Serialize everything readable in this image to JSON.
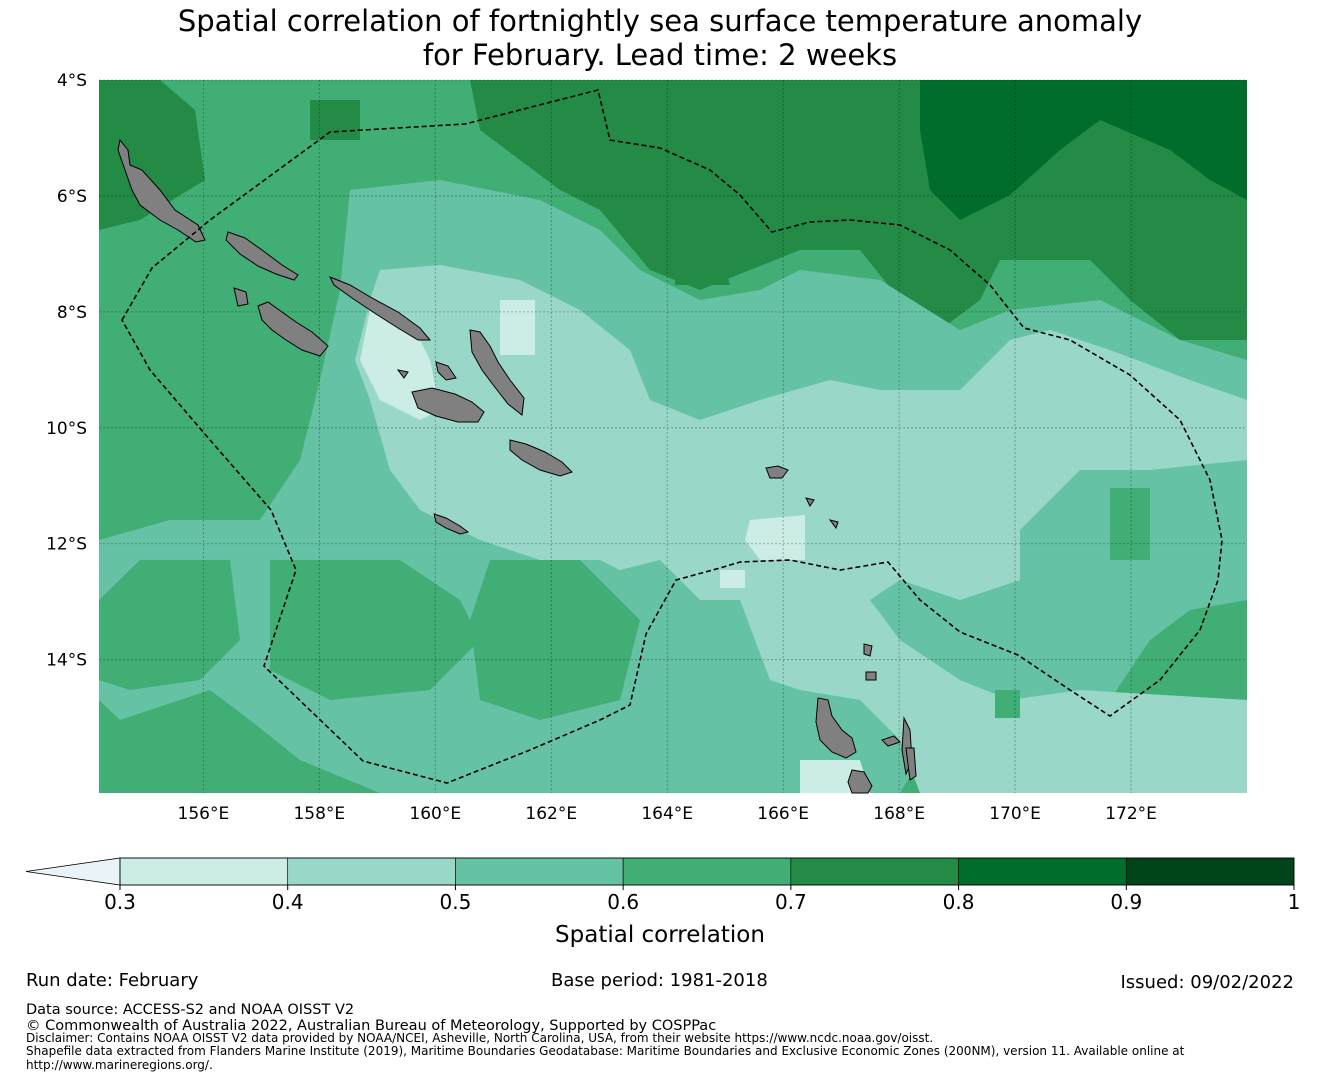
{
  "title": {
    "line1": "Spatial correlation of fortnightly sea surface temperature anomaly",
    "line2": "for February. Lead time: 2 weeks"
  },
  "map": {
    "lon_range": [
      154.2,
      174.0
    ],
    "lat_range": [
      -16.3,
      -4.0
    ],
    "lon_ticks": [
      "156°E",
      "158°E",
      "160°E",
      "162°E",
      "164°E",
      "166°E",
      "168°E",
      "170°E",
      "172°E"
    ],
    "lat_ticks": [
      "4°S",
      "6°S",
      "8°S",
      "10°S",
      "12°S",
      "14°S"
    ],
    "gridlines": true,
    "land_color": "#808080",
    "eez_boundary_style": "dashed"
  },
  "colorbar": {
    "label": "Spatial correlation",
    "ticks": [
      "0.3",
      "0.4",
      "0.5",
      "0.6",
      "0.7",
      "0.8",
      "0.9",
      "1"
    ],
    "extend": "min",
    "under_color": "#e8f4f8",
    "colors": [
      "#ccece6",
      "#99d8c9",
      "#66c2a4",
      "#41ae76",
      "#238b45",
      "#006d2c",
      "#00441b"
    ]
  },
  "footer": {
    "run_date": "Run date: February",
    "base_period": "Base period: 1981-2018",
    "issued": "Issued: 09/02/2022",
    "data_source": "Data source: ACCESS-S2 and NOAA OISST V2",
    "copyright": "© Commonwealth of Australia 2022, Australian Bureau of Meteorology, Supported by COSPPac",
    "disclaimer": "Disclaimer: Contains NOAA OISST V2 data provided by NOAA/NCEI, Asheville, North Carolina, USA, from their website https://www.ncdc.noaa.gov/oisst.",
    "shapefile_line1": "Shapefile data extracted from Flanders Marine Institute (2019), Maritime Boundaries Geodatabase: Maritime Boundaries and Exclusive Economic Zones (200NM), version 11. Available online at",
    "shapefile_line2": "http://www.marineregions.org/."
  }
}
